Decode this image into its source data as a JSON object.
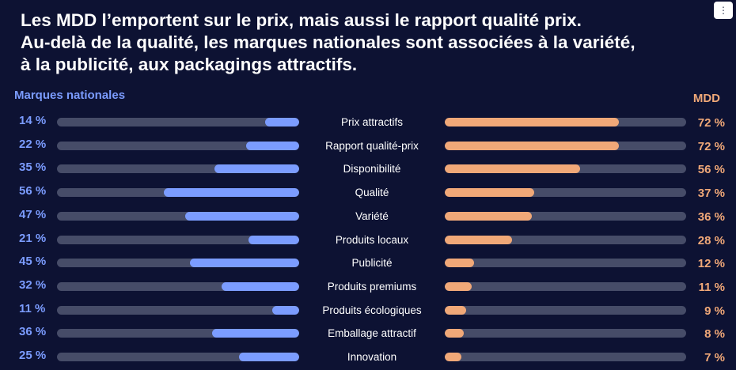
{
  "title_lines": [
    "Les MDD l’emportent sur le prix, mais aussi le rapport qualité prix.",
    "Au-delà de la qualité, les marques nationales sont associées à la variété,",
    "à la publicité, aux packagings attractifs."
  ],
  "menu_icon": "vertical-ellipsis-icon",
  "menu_glyph": "⋮",
  "colors": {
    "background": "#0d1233",
    "national_brands": "#7b9cff",
    "mdd": "#f0a878",
    "track": "#464c68"
  },
  "chart_data": {
    "type": "bar",
    "layout": "diverging-horizontal",
    "legend_placement": "top",
    "categories": [
      "Prix attractifs",
      "Rapport qualité-prix",
      "Disponibilité",
      "Qualité",
      "Variété",
      "Produits locaux",
      "Publicité",
      "Produits premiums",
      "Produits écologiques",
      "Emballage attractif",
      "Innovation"
    ],
    "xlim": [
      0,
      100
    ],
    "series": [
      {
        "name": "Marques nationales",
        "values": [
          14,
          22,
          35,
          56,
          47,
          21,
          45,
          32,
          11,
          36,
          25
        ],
        "labels": [
          "14 %",
          "22 %",
          "35 %",
          "56 %",
          "47 %",
          "21 %",
          "45 %",
          "32 %",
          "11 %",
          "36 %",
          "25 %"
        ]
      },
      {
        "name": "MDD",
        "values": [
          72,
          72,
          56,
          37,
          36,
          28,
          12,
          11,
          9,
          8,
          7
        ],
        "labels": [
          "72 %",
          "72 %",
          "56 %",
          "37 %",
          "36 %",
          "28 %",
          "12 %",
          "11 %",
          "9 %",
          "8 %",
          "7 %"
        ]
      }
    ]
  }
}
